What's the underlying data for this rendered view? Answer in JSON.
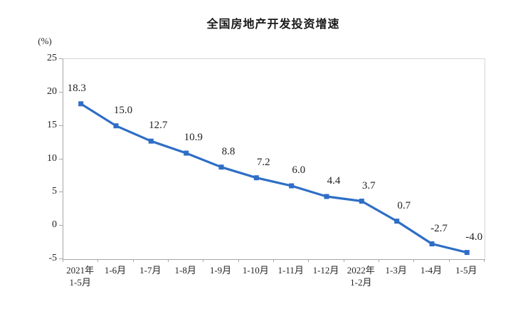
{
  "page": {
    "background_color": "#ffffff"
  },
  "chart_data": {
    "type": "line",
    "title": "全国房地产开发投资增速",
    "unit_label": "(%)",
    "categories": [
      "2021年\n1-5月",
      "1-6月",
      "1-7月",
      "1-8月",
      "1-9月",
      "1-10月",
      "1-11月",
      "1-12月",
      "2022年\n1-2月",
      "1-3月",
      "1-4月",
      "1-5月"
    ],
    "values": [
      18.3,
      15.0,
      12.7,
      10.9,
      8.8,
      7.2,
      6.0,
      4.4,
      3.7,
      0.7,
      -2.7,
      -4.0
    ],
    "data_labels": [
      "18.3",
      "15.0",
      "12.7",
      "10.9",
      "8.8",
      "7.2",
      "6.0",
      "4.4",
      "3.7",
      "0.7",
      "-2.7",
      "-4.0"
    ],
    "y_axis": {
      "min": -5,
      "max": 25,
      "step": 5,
      "tick_labels": [
        "25",
        "20",
        "15",
        "10",
        "5",
        "0",
        "-5"
      ]
    },
    "xlabel": "",
    "ylabel": "(%)",
    "line_color": "#2e6ec6",
    "marker_shape": "square",
    "grid": false,
    "legend_position": "none",
    "plot_border_color": "#d6d6d6",
    "axis_line_color": "#a6a6a6",
    "text_color": "#262626"
  }
}
